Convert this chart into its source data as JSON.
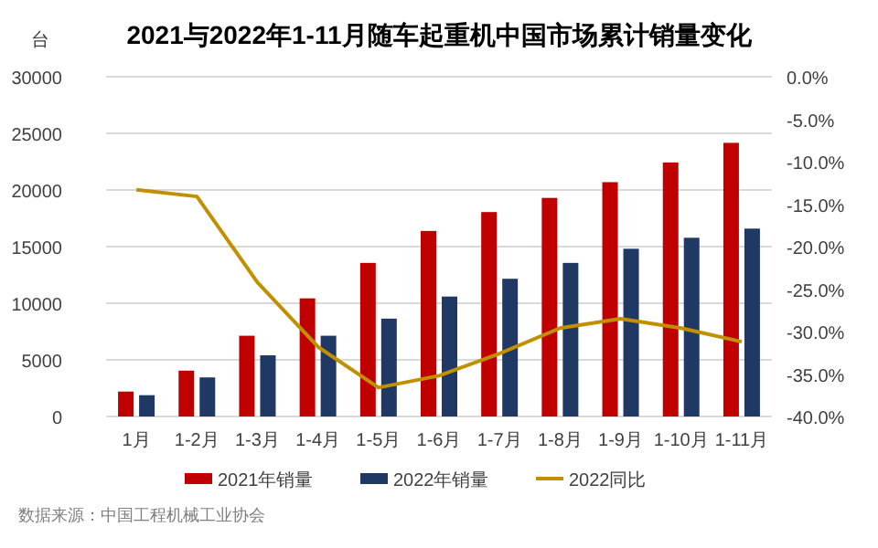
{
  "chart_data": {
    "type": "bar",
    "title": "2021与2022年1-11月随车起重机中国市场累计销量变化",
    "ylabel": "台",
    "categories": [
      "1月",
      "1-2月",
      "1-3月",
      "1-4月",
      "1-5月",
      "1-6月",
      "1-7月",
      "1-8月",
      "1-9月",
      "1-10月",
      "1-11月"
    ],
    "series": [
      {
        "name": "2021年销量",
        "color": "#c00000",
        "values": [
          2200,
          4050,
          7130,
          10430,
          13560,
          16380,
          18050,
          19300,
          20690,
          22430,
          24160
        ]
      },
      {
        "name": "2022年销量",
        "color": "#203864",
        "values": [
          1880,
          3450,
          5400,
          7130,
          8640,
          10590,
          12160,
          13560,
          14810,
          15780,
          16590
        ]
      },
      {
        "name": "2022同比",
        "type": "line",
        "axis": "y2",
        "color": "#c09000",
        "values": [
          -13.3,
          -14.1,
          -24.2,
          -31.8,
          -36.6,
          -35.2,
          -32.6,
          -29.6,
          -28.5,
          -29.6,
          -31.2
        ]
      }
    ],
    "ylim": [
      0,
      30000
    ],
    "yticks": [
      0,
      5000,
      10000,
      15000,
      20000,
      25000,
      30000
    ],
    "y2lim": [
      -40,
      0
    ],
    "y2ticks": [
      {
        "value": 0,
        "label": "0.0%"
      },
      {
        "value": -5,
        "label": "-5.0%"
      },
      {
        "value": -10,
        "label": "-10.0%"
      },
      {
        "value": -15,
        "label": "-15.0%"
      },
      {
        "value": -20,
        "label": "-20.0%"
      },
      {
        "value": -25,
        "label": "-25.0%"
      },
      {
        "value": -30,
        "label": "-30.0%"
      },
      {
        "value": -35,
        "label": "-35.0%"
      },
      {
        "value": -40,
        "label": "-40.0%"
      }
    ],
    "grid": "y",
    "legend": "bottom",
    "marker": "none",
    "line_style": "solid",
    "annotations": [
      "数据来源：中国工程机械工业协会"
    ]
  }
}
